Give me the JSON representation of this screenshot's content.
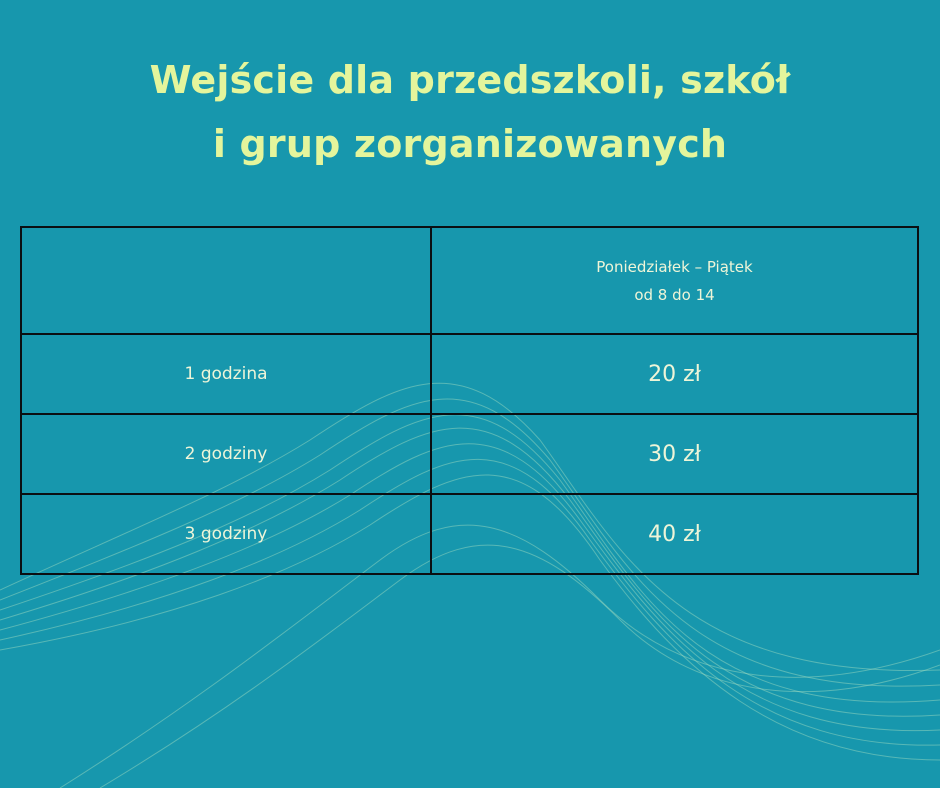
{
  "title": {
    "lines": [
      "Wejście dla przedszkoli, szkół",
      "i grup zorganizowanych"
    ]
  },
  "table": {
    "header": [
      "Poniedziałek – Piątek",
      "od 8 do 14"
    ],
    "rows": [
      [
        "1 godzina",
        "20 zł"
      ],
      [
        "2 godziny",
        "30 zł"
      ],
      [
        "3 godziny",
        "40 zł"
      ]
    ]
  }
}
